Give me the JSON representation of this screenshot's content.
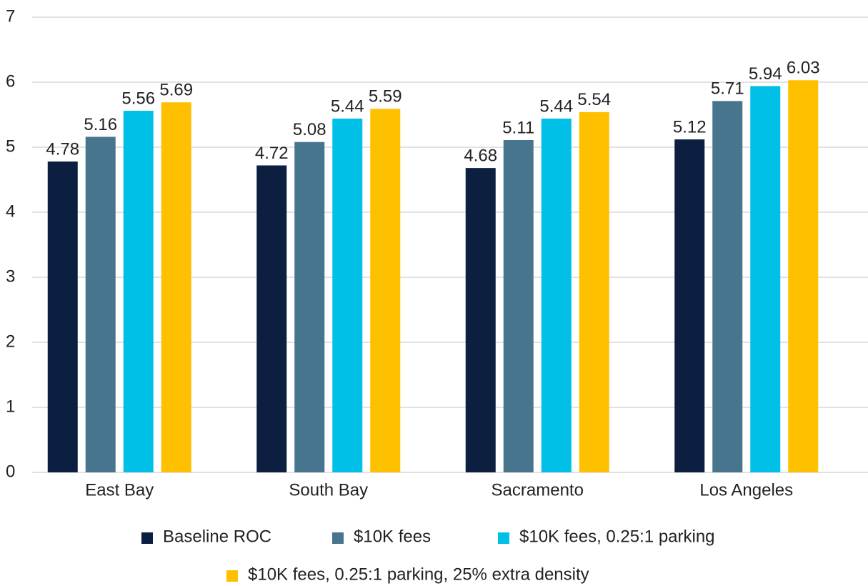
{
  "chart_data": {
    "type": "bar",
    "categories": [
      "East Bay",
      "South Bay",
      "Sacramento",
      "Los Angeles"
    ],
    "series": [
      {
        "name": "Baseline ROC",
        "color": "#0c1f40",
        "values": [
          4.78,
          4.72,
          4.68,
          5.12
        ]
      },
      {
        "name": "$10K fees",
        "color": "#47758e",
        "values": [
          5.16,
          5.08,
          5.11,
          5.71
        ]
      },
      {
        "name": "$10K fees, 0.25:1 parking",
        "color": "#00c0e8",
        "values": [
          5.56,
          5.44,
          5.44,
          5.94
        ]
      },
      {
        "name": "$10K fees, 0.25:1 parking, 25% extra density",
        "color": "#ffc000",
        "values": [
          5.69,
          5.59,
          5.54,
          6.03
        ]
      }
    ],
    "ylim": [
      0,
      7
    ],
    "yticks": [
      0,
      1,
      2,
      3,
      4,
      5,
      6,
      7
    ],
    "grid": true,
    "legend": "bottom"
  }
}
